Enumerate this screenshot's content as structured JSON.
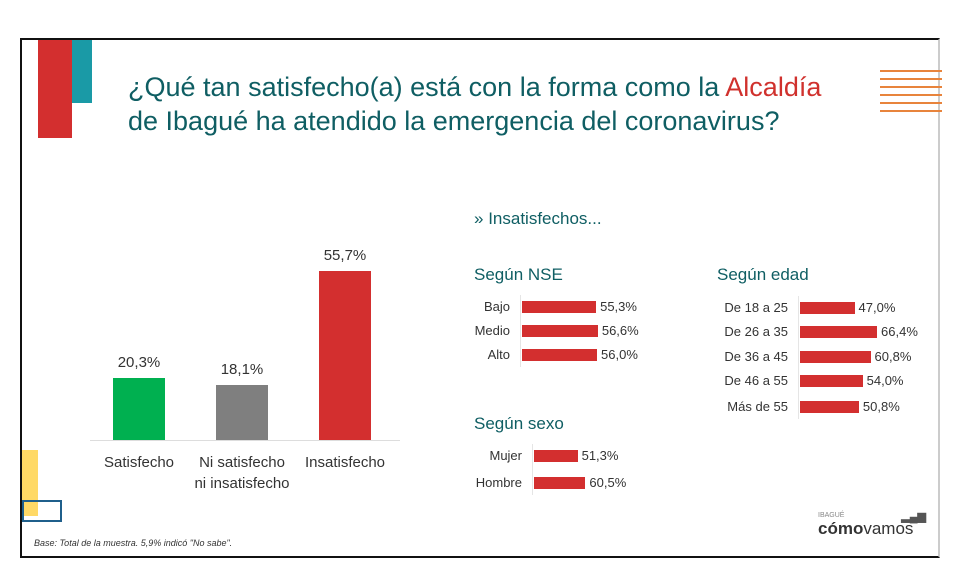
{
  "title": {
    "part1": "¿Qué tan satisfecho(a) está con la forma como la ",
    "highlight": "Alcaldía",
    "part2": " de Ibagué ha atendido la emergencia del coronavirus?"
  },
  "subtitle": "Insatisfechos...",
  "footnote": "Base: Total de la muestra. 5,9% indicó \"No sabe\".",
  "logo": {
    "small": "IBAGUÉ",
    "brand_bold": "cómo",
    "brand_light": "vamos"
  },
  "colors": {
    "teal": "#0f5e63",
    "red": "#d32f2f",
    "green": "#00b050",
    "gray": "#7f7f7f",
    "orange": "#e8843c",
    "yellow": "#ffd966",
    "blue": "#1f5f8b"
  },
  "chart_data": [
    {
      "type": "bar",
      "categories": [
        "Satisfecho",
        "Ni satisfecho ni insatisfecho",
        "Insatisfecho"
      ],
      "category_lines": [
        [
          "Satisfecho"
        ],
        [
          "Ni satisfecho",
          "ni insatisfecho"
        ],
        [
          "Insatisfecho"
        ]
      ],
      "values": [
        20.3,
        18.1,
        55.7
      ],
      "labels": [
        "20,3%",
        "18,1%",
        "55,7%"
      ],
      "bar_colors": [
        "#00b050",
        "#7f7f7f",
        "#d32f2f"
      ]
    },
    {
      "type": "bar",
      "orientation": "horizontal",
      "title": "Según NSE",
      "categories": [
        "Bajo",
        "Medio",
        "Alto"
      ],
      "values": [
        55.3,
        56.6,
        56.0
      ],
      "labels": [
        "55,3%",
        "56,6%",
        "56,0%"
      ]
    },
    {
      "type": "bar",
      "orientation": "horizontal",
      "title": "Según edad",
      "categories": [
        "De 18 a 25",
        "De 26 a 35",
        "De 36 a 45",
        "De 46 a 55",
        "Más de 55"
      ],
      "values": [
        47.0,
        66.4,
        60.8,
        54.0,
        50.8
      ],
      "labels": [
        "47,0%",
        "66,4%",
        "60,8%",
        "54,0%",
        "50,8%"
      ]
    },
    {
      "type": "bar",
      "orientation": "horizontal",
      "title": "Según sexo",
      "categories": [
        "Mujer",
        "Hombre"
      ],
      "values": [
        51.3,
        60.5
      ],
      "labels": [
        "51,3%",
        "60,5%"
      ]
    }
  ]
}
